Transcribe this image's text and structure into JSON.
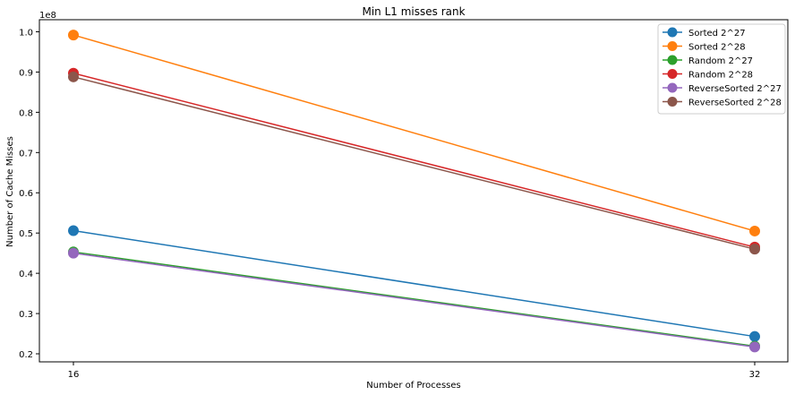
{
  "chart_data": {
    "type": "line",
    "title": "Min L1 misses rank",
    "xlabel": "Number of Processes",
    "ylabel": "Number of Cache Misses",
    "y_offset_label": "1e8",
    "x": [
      16,
      32
    ],
    "x_ticks": [
      "16",
      "32"
    ],
    "y_ticks": [
      0.2,
      0.3,
      0.4,
      0.5,
      0.6,
      0.7,
      0.8,
      0.9,
      1.0
    ],
    "y_tick_labels": [
      "0.2",
      "0.3",
      "0.4",
      "0.5",
      "0.6",
      "0.7",
      "0.8",
      "0.9",
      "1.0"
    ],
    "ylim": [
      0.18,
      1.03
    ],
    "grid": false,
    "legend_position": "top-right",
    "series": [
      {
        "name": "Sorted 2^27",
        "color": "#1f77b4",
        "values": [
          0.506,
          0.243
        ]
      },
      {
        "name": "Sorted 2^28",
        "color": "#ff7f0e",
        "values": [
          0.992,
          0.505
        ]
      },
      {
        "name": "Random 2^27",
        "color": "#2ca02c",
        "values": [
          0.453,
          0.219
        ]
      },
      {
        "name": "Random 2^28",
        "color": "#d62728",
        "values": [
          0.897,
          0.465
        ]
      },
      {
        "name": "ReverseSorted 2^27",
        "color": "#9467bd",
        "values": [
          0.45,
          0.217
        ]
      },
      {
        "name": "ReverseSorted 2^28",
        "color": "#8c564b",
        "values": [
          0.888,
          0.46
        ]
      }
    ]
  }
}
